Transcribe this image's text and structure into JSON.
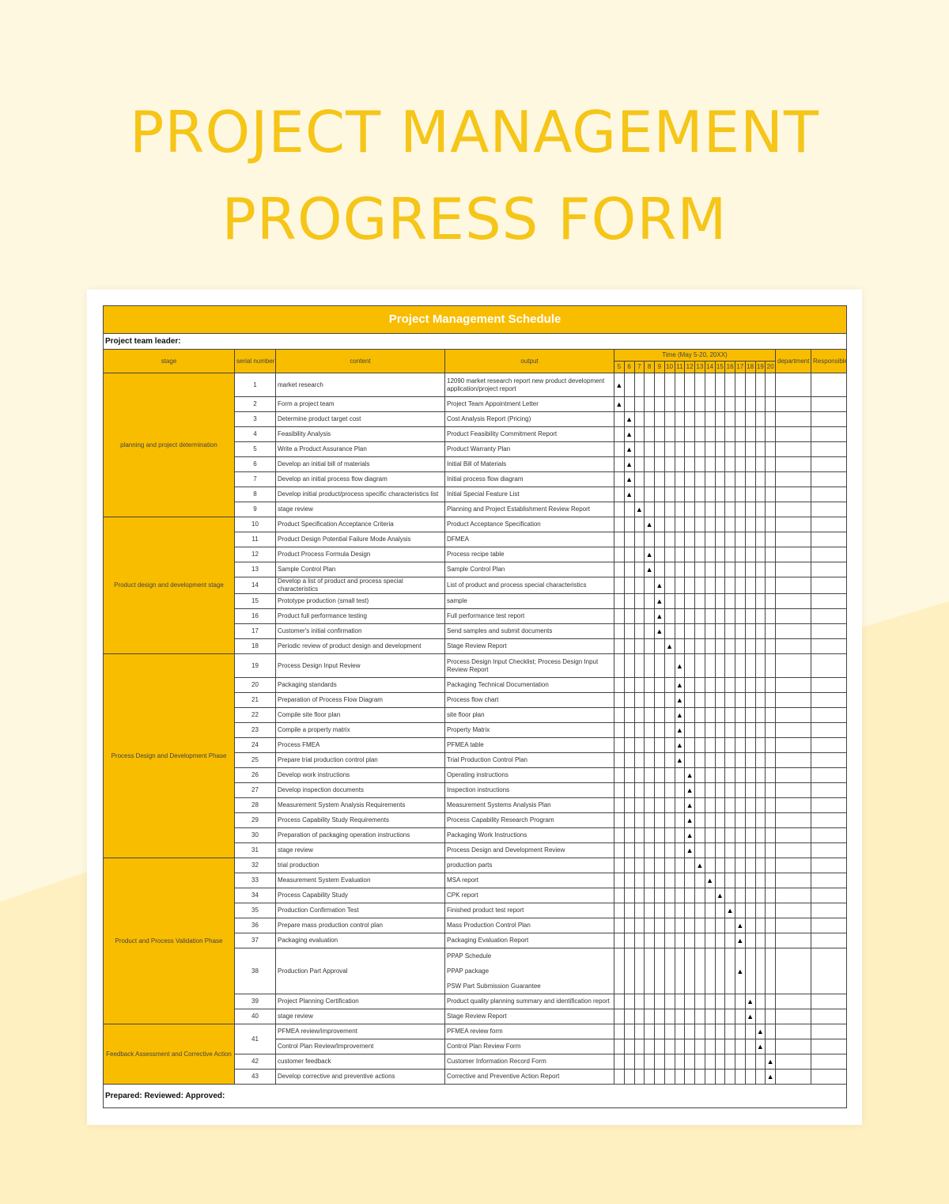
{
  "page": {
    "title_line1": "PROJECT MANAGEMENT",
    "title_line2": "PROGRESS FORM",
    "colors": {
      "accent": "#f9bd00",
      "background": "#fff8e1",
      "title": "#f5c518"
    }
  },
  "sheet": {
    "schedule_title": "Project Management Schedule",
    "team_leader_label": "Project team leader:",
    "headers": {
      "stage": "stage",
      "serial": "serial number",
      "content": "content",
      "output": "output",
      "time": "Time (May 5-20, 20XX)",
      "department": "department",
      "responsible": "Responsible"
    },
    "days": [
      "5",
      "6",
      "7",
      "8",
      "9",
      "10",
      "11",
      "12",
      "13",
      "14",
      "15",
      "16",
      "17",
      "18",
      "19",
      "20"
    ],
    "marker_symbol": "▲",
    "footer": "Prepared: Reviewed: Approved:",
    "stages": [
      {
        "name": "planning and project determination",
        "rows": 9
      },
      {
        "name": "Product design and development stage",
        "rows": 9
      },
      {
        "name": "Process Design and Development Phase",
        "rows": 13
      },
      {
        "name": "Product and Process Validation Phase",
        "rows": 9
      },
      {
        "name": "Feedback Assessment and Corrective Action",
        "rows": 4
      }
    ],
    "rows": [
      {
        "serial": "1",
        "content": "market research",
        "output": "12090 market research report new product development application/project report",
        "day": "5",
        "h": "tall"
      },
      {
        "serial": "2",
        "content": "Form a project team",
        "output": "Project Team Appointment Letter",
        "day": "5"
      },
      {
        "serial": "3",
        "content": "Determine product target cost",
        "output": "Cost Analysis Report (Pricing)",
        "day": "6"
      },
      {
        "serial": "4",
        "content": "Feasibility Analysis",
        "output": "Product Feasibility Commitment Report",
        "day": "6"
      },
      {
        "serial": "5",
        "content": "Write a Product Assurance Plan",
        "output": "Product Warranty Plan",
        "day": "6"
      },
      {
        "serial": "6",
        "content": "Develop an initial bill of materials",
        "output": "Initial Bill of Materials",
        "day": "6"
      },
      {
        "serial": "7",
        "content": "Develop an initial process flow diagram",
        "output": "Initial process flow diagram",
        "day": "6"
      },
      {
        "serial": "8",
        "content": "Develop initial product/process specific characteristics list",
        "output": "Initial Special Feature List",
        "day": "6"
      },
      {
        "serial": "9",
        "content": "stage review",
        "output": "Planning and Project Establishment Review Report",
        "day": "7"
      },
      {
        "serial": "10",
        "content": "Product Specification Acceptance Criteria",
        "output": "Product Acceptance Specification",
        "day": "8"
      },
      {
        "serial": "11",
        "content": "Product Design Potential Failure Mode Analysis",
        "output": "DFMEA",
        "day": ""
      },
      {
        "serial": "12",
        "content": "Product Process Formula Design",
        "output": "Process recipe table",
        "day": "8"
      },
      {
        "serial": "13",
        "content": "Sample Control Plan",
        "output": "Sample Control Plan",
        "day": "8"
      },
      {
        "serial": "14",
        "content": "Develop a list of product and process special characteristics",
        "output": "List of product and process special characteristics",
        "day": "9"
      },
      {
        "serial": "15",
        "content": "Prototype production (small test)",
        "output": "sample",
        "day": "9"
      },
      {
        "serial": "16",
        "content": "Product full performance testing",
        "output": "Full performance test report",
        "day": "9"
      },
      {
        "serial": "17",
        "content": "Customer's initial confirmation",
        "output": "Send samples and submit documents",
        "day": "9"
      },
      {
        "serial": "18",
        "content": "Periodic review of product design and development",
        "output": "Stage Review Report",
        "day": "10"
      },
      {
        "serial": "19",
        "content": "Process Design Input Review",
        "output": "Process Design Input Checklist; Process Design Input Review Report",
        "day": "11",
        "h": "tall"
      },
      {
        "serial": "20",
        "content": "Packaging standards",
        "output": "Packaging Technical Documentation",
        "day": "11"
      },
      {
        "serial": "21",
        "content": "Preparation of Process Flow Diagram",
        "output": "Process flow chart",
        "day": "11"
      },
      {
        "serial": "22",
        "content": "Compile site floor plan",
        "output": "site floor plan",
        "day": "11"
      },
      {
        "serial": "23",
        "content": "Compile a property matrix",
        "output": "Property Matrix",
        "day": "11"
      },
      {
        "serial": "24",
        "content": "Process FMEA",
        "output": "PFMEA table",
        "day": "11"
      },
      {
        "serial": "25",
        "content": "Prepare trial production control plan",
        "output": "Trial Production Control Plan",
        "day": "11"
      },
      {
        "serial": "26",
        "content": "Develop work instructions",
        "output": "Operating instructions",
        "day": "12"
      },
      {
        "serial": "27",
        "content": "Develop inspection documents",
        "output": "Inspection instructions",
        "day": "12"
      },
      {
        "serial": "28",
        "content": "Measurement System Analysis Requirements",
        "output": "Measurement Systems Analysis Plan",
        "day": "12"
      },
      {
        "serial": "29",
        "content": "Process Capability Study Requirements",
        "output": "Process Capability Research Program",
        "day": "12"
      },
      {
        "serial": "30",
        "content": "Preparation of packaging operation instructions",
        "output": "Packaging Work Instructions",
        "day": "12"
      },
      {
        "serial": "31",
        "content": "stage review",
        "output": "Process Design and Development Review",
        "day": "12"
      },
      {
        "serial": "32",
        "content": "trial production",
        "output": "production parts",
        "day": "13"
      },
      {
        "serial": "33",
        "content": "Measurement System Evaluation",
        "output": "MSA report",
        "day": "14"
      },
      {
        "serial": "34",
        "content": "Process Capability Study",
        "output": "CPK report",
        "day": "15"
      },
      {
        "serial": "35",
        "content": "Production Confirmation Test",
        "output": "Finished product test report",
        "day": "16"
      },
      {
        "serial": "36",
        "content": "Prepare mass production control plan",
        "output": "Mass Production Control Plan",
        "day": "17"
      },
      {
        "serial": "37",
        "content": "Packaging evaluation",
        "output": "Packaging Evaluation Report",
        "day": "17"
      },
      {
        "serial": "38",
        "content": "Production Part Approval",
        "outputs": [
          "PPAP Schedule",
          "PPAP package",
          "PSW Part Submission Guarantee"
        ],
        "day": "17",
        "h": "tall3"
      },
      {
        "serial": "39",
        "content": "Project Planning Certification",
        "output": "Product quality planning summary and identification report",
        "day": "18"
      },
      {
        "serial": "40",
        "content": "stage review",
        "output": "Stage Review Report",
        "day": "18"
      },
      {
        "serial": "41",
        "content": "PFMEA review/improvement",
        "output": "PFMEA review form",
        "day": "19",
        "merge_serial": true
      },
      {
        "serial": "",
        "content": "Control Plan Review/Improvement",
        "output": "Control Plan Review Form",
        "day": "19",
        "merged": true
      },
      {
        "serial": "42",
        "content": "customer feedback",
        "output": "Customer Information Record Form",
        "day": "20"
      },
      {
        "serial": "43",
        "content": "Develop corrective and preventive actions",
        "output": "Corrective and Preventive Action Report",
        "day": "20"
      }
    ]
  }
}
